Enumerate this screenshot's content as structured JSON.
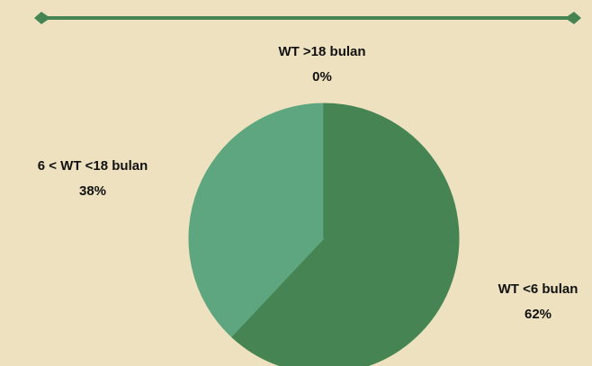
{
  "chart_data": {
    "type": "pie",
    "categories": [
      "WT <6 bulan",
      "6 < WT <18 bulan",
      "WT >18 bulan"
    ],
    "values": [
      62,
      38,
      0
    ],
    "value_labels": [
      "62%",
      "38%",
      "0%"
    ],
    "colors": [
      "#468553",
      "#5ea67f",
      "#3f7a4c"
    ]
  }
}
